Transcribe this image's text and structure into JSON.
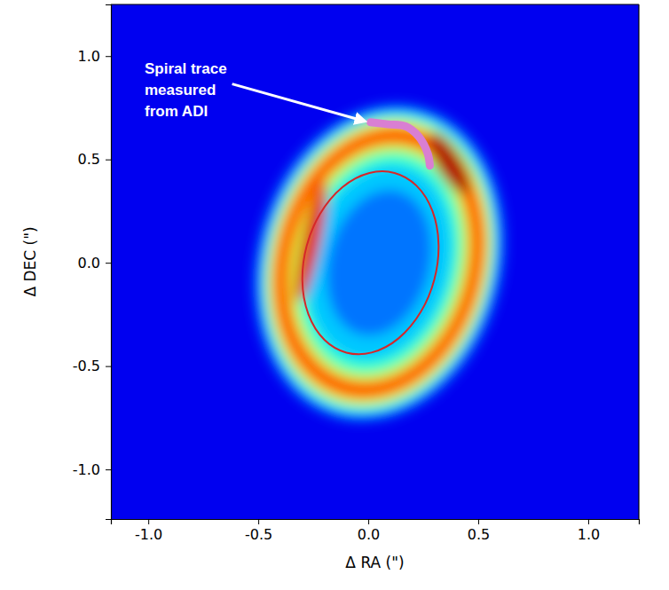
{
  "chart_data": {
    "type": "image",
    "xlabel": "Δ RA (\")",
    "ylabel": "Δ DEC (\")",
    "xlim": [
      -1.17,
      1.23
    ],
    "ylim": [
      -1.24,
      1.25
    ],
    "xticks": [
      {
        "value": -1,
        "label": "-1.0"
      },
      {
        "value": -0.5,
        "label": "-0.5"
      },
      {
        "value": 0,
        "label": "0.0"
      },
      {
        "value": 0.5,
        "label": "0.5"
      },
      {
        "value": 1,
        "label": "1.0"
      }
    ],
    "yticks": [
      {
        "value": -1,
        "label": "-1.0"
      },
      {
        "value": -0.5,
        "label": "-0.5"
      },
      {
        "value": 0,
        "label": "0.0"
      },
      {
        "value": 0.5,
        "label": "0.5"
      },
      {
        "value": 1,
        "label": "1.0"
      }
    ],
    "background_level": 0.11,
    "disk": {
      "x": 0.05,
      "y": 0.0,
      "pa": 15,
      "contours": [
        {
          "level": 0.22,
          "a": 0.78,
          "b": 0.56
        },
        {
          "level": 0.38,
          "a": 0.74,
          "b": 0.52
        },
        {
          "level": 0.55,
          "a": 0.71,
          "b": 0.5
        },
        {
          "level": 0.7,
          "a": 0.68,
          "b": 0.48
        },
        {
          "level": 0.84,
          "a": 0.65,
          "b": 0.455
        },
        {
          "level": 0.7,
          "a": 0.6,
          "b": 0.415
        },
        {
          "level": 0.55,
          "a": 0.575,
          "b": 0.39
        },
        {
          "level": 0.42,
          "a": 0.54,
          "b": 0.36
        },
        {
          "level": 0.32,
          "a": 0.48,
          "b": 0.32
        },
        {
          "level": 0.24,
          "a": 0.36,
          "b": 0.23
        }
      ]
    },
    "features": [
      {
        "level": 0.95,
        "x": 0.37,
        "y": 0.48,
        "a": 0.17,
        "b": 0.055,
        "pa": -31
      },
      {
        "level": 0.9,
        "x": -0.26,
        "y": 0.1,
        "a": 0.3,
        "b": 0.04,
        "pa": 12
      }
    ],
    "ellipse": {
      "x": 0.01,
      "y": 0.0,
      "a": 0.45,
      "b": 0.3,
      "pa": 15,
      "color": "#d62728"
    },
    "trace": {
      "x": [
        0.01,
        0.09,
        0.17,
        0.23,
        0.27,
        0.28
      ],
      "y": [
        0.68,
        0.67,
        0.66,
        0.61,
        0.53,
        0.47
      ],
      "color": "#d97fd2"
    },
    "annotation": {
      "text": "Spiral trace\nmeasured\nfrom ADI",
      "color": "#ffffff"
    }
  }
}
